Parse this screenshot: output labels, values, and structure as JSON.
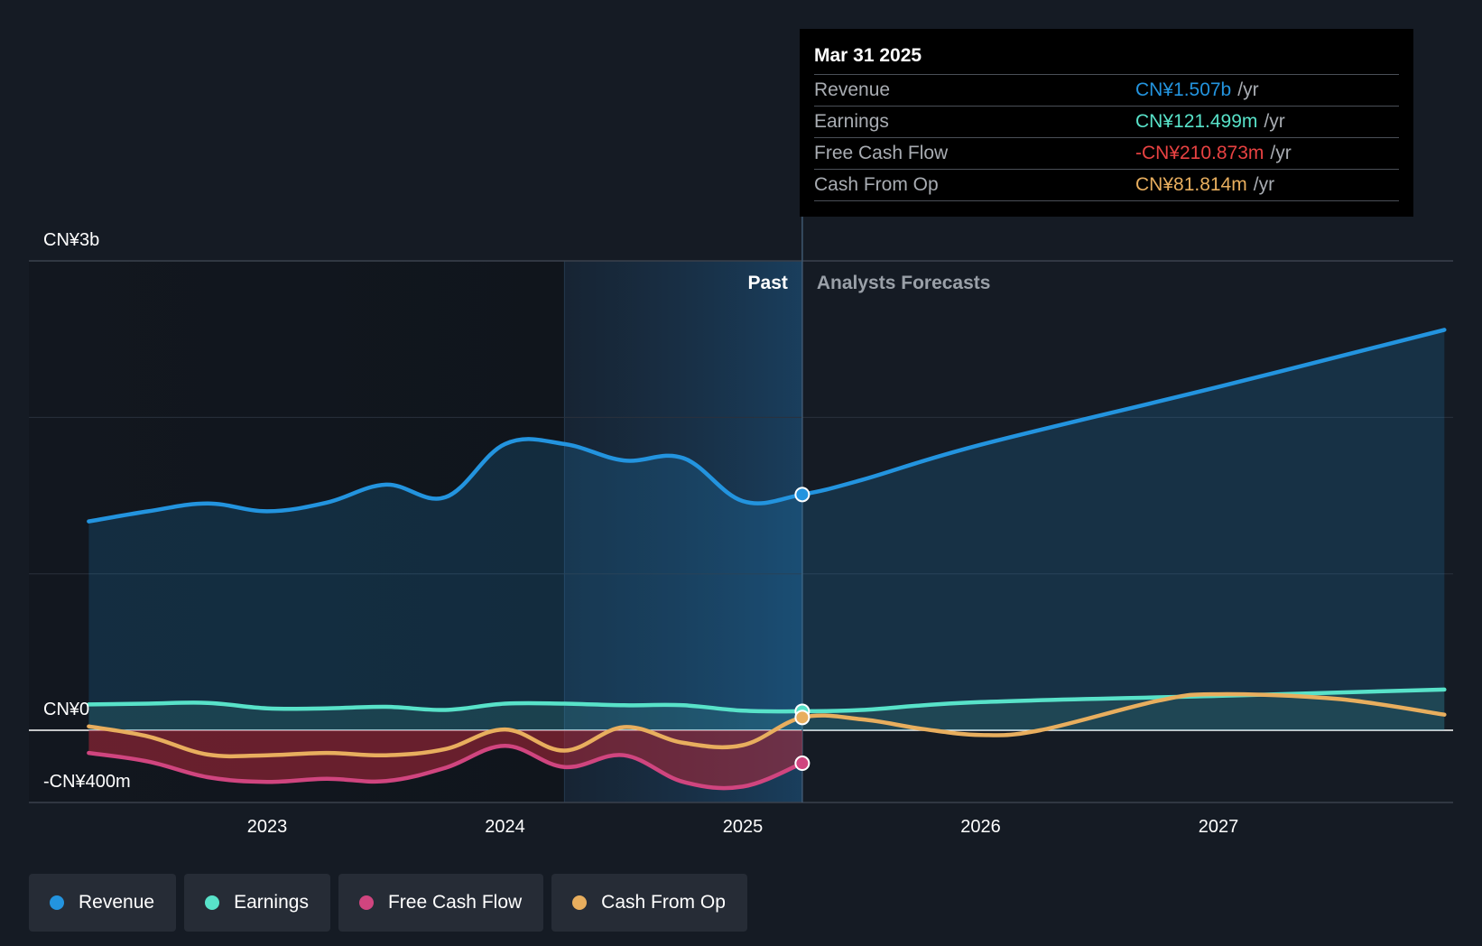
{
  "chart_data": {
    "type": "line",
    "x_axis_ticks": [
      "2023",
      "2024",
      "2025",
      "2026",
      "2027"
    ],
    "y_axis_labels": {
      "top": "CN¥3b",
      "zero": "CN¥0",
      "bottom": "-CN¥400m"
    },
    "ylim": [
      -400,
      3000
    ],
    "y_unit": "CN¥ millions",
    "xlim": [
      2022.25,
      2027.95
    ],
    "past_label": "Past",
    "forecast_label": "Analysts Forecasts",
    "past_end": 2025.25,
    "highlight_start": 2024.25,
    "series": [
      {
        "name": "Revenue",
        "color": "#2394df",
        "fill_to_zero": true,
        "points": [
          [
            2022.25,
            1335
          ],
          [
            2022.5,
            1400
          ],
          [
            2022.75,
            1450
          ],
          [
            2023.0,
            1400
          ],
          [
            2023.25,
            1455
          ],
          [
            2023.5,
            1570
          ],
          [
            2023.75,
            1490
          ],
          [
            2024.0,
            1830
          ],
          [
            2024.25,
            1830
          ],
          [
            2024.5,
            1725
          ],
          [
            2024.75,
            1740
          ],
          [
            2025.0,
            1465
          ],
          [
            2025.25,
            1507
          ],
          [
            2025.5,
            1600
          ],
          [
            2026.0,
            1825
          ],
          [
            2027.0,
            2195
          ],
          [
            2027.95,
            2560
          ]
        ]
      },
      {
        "name": "Earnings",
        "color": "#58e2c9",
        "fill_to_zero": true,
        "points": [
          [
            2022.25,
            165
          ],
          [
            2022.5,
            170
          ],
          [
            2022.75,
            175
          ],
          [
            2023.0,
            140
          ],
          [
            2023.25,
            140
          ],
          [
            2023.5,
            150
          ],
          [
            2023.75,
            130
          ],
          [
            2024.0,
            170
          ],
          [
            2024.25,
            170
          ],
          [
            2024.5,
            160
          ],
          [
            2024.75,
            160
          ],
          [
            2025.0,
            125
          ],
          [
            2025.25,
            121.5
          ],
          [
            2025.5,
            130
          ],
          [
            2026.0,
            180
          ],
          [
            2027.0,
            220
          ],
          [
            2027.95,
            260
          ]
        ]
      },
      {
        "name": "Free Cash Flow",
        "color": "#d0457f",
        "fill_to_zero": true,
        "points": [
          [
            2022.25,
            -145
          ],
          [
            2022.5,
            -200
          ],
          [
            2022.75,
            -300
          ],
          [
            2023.0,
            -330
          ],
          [
            2023.25,
            -310
          ],
          [
            2023.5,
            -325
          ],
          [
            2023.75,
            -240
          ],
          [
            2024.0,
            -100
          ],
          [
            2024.25,
            -235
          ],
          [
            2024.5,
            -160
          ],
          [
            2024.75,
            -330
          ],
          [
            2025.0,
            -360
          ],
          [
            2025.25,
            -210.873
          ]
        ]
      },
      {
        "name": "Cash From Op",
        "color": "#e8ae5e",
        "fill_to_zero": false,
        "points": [
          [
            2022.25,
            25
          ],
          [
            2022.5,
            -40
          ],
          [
            2022.75,
            -155
          ],
          [
            2023.0,
            -160
          ],
          [
            2023.25,
            -145
          ],
          [
            2023.5,
            -160
          ],
          [
            2023.75,
            -120
          ],
          [
            2024.0,
            5
          ],
          [
            2024.25,
            -130
          ],
          [
            2024.5,
            20
          ],
          [
            2024.75,
            -80
          ],
          [
            2025.0,
            -95
          ],
          [
            2025.25,
            81.814
          ],
          [
            2025.5,
            70
          ],
          [
            2025.75,
            10
          ],
          [
            2026.0,
            -30
          ],
          [
            2026.25,
            0
          ],
          [
            2026.75,
            190
          ],
          [
            2027.0,
            230
          ],
          [
            2027.5,
            200
          ],
          [
            2027.95,
            100
          ]
        ]
      }
    ],
    "tooltip": {
      "date": "Mar 31 2025",
      "unit": "/yr",
      "rows": [
        {
          "label": "Revenue",
          "value": "CN¥1.507b",
          "color": "#2394df"
        },
        {
          "label": "Earnings",
          "value": "CN¥121.499m",
          "color": "#58e2c9"
        },
        {
          "label": "Free Cash Flow",
          "value": "-CN¥210.873m",
          "color": "#e84242"
        },
        {
          "label": "Cash From Op",
          "value": "CN¥81.814m",
          "color": "#e8ae5e"
        }
      ]
    },
    "legend": [
      {
        "label": "Revenue",
        "color": "#2394df"
      },
      {
        "label": "Earnings",
        "color": "#58e2c9"
      },
      {
        "label": "Free Cash Flow",
        "color": "#d0457f"
      },
      {
        "label": "Cash From Op",
        "color": "#e8ae5e"
      }
    ]
  }
}
